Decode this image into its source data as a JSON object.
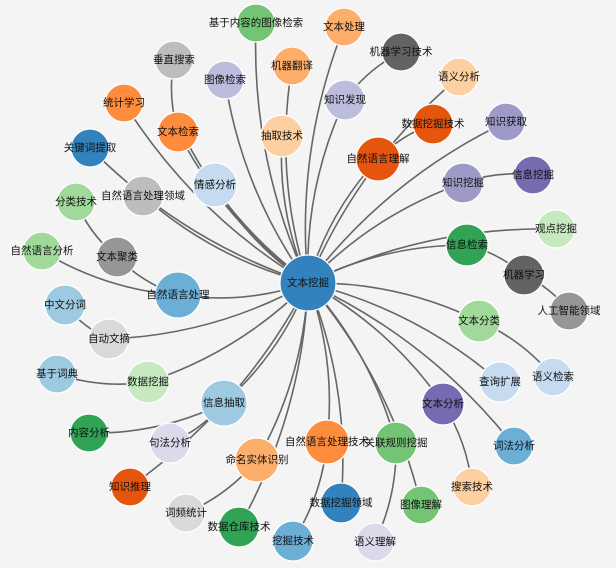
{
  "center": {
    "label": "文本挖掘",
    "color": "#3182bd"
  },
  "nodes": [
    {
      "label": "基于内容的图像检索",
      "color": "#74c476",
      "parent": "文本挖掘"
    },
    {
      "label": "文本处理",
      "color": "#fdae6b",
      "parent": "文本挖掘"
    },
    {
      "label": "机器翻译",
      "color": "#fdae6b",
      "parent": "文本挖掘"
    },
    {
      "label": "机器学习技术",
      "color": "#636363",
      "parent": "知识发现"
    },
    {
      "label": "垂直搜索",
      "color": "#bdbdbd",
      "parent": "文本检索"
    },
    {
      "label": "图像检索",
      "color": "#bcbddc",
      "parent": "文本挖掘"
    },
    {
      "label": "语义分析",
      "color": "#fdd0a2",
      "parent": "文本挖掘"
    },
    {
      "label": "统计学习",
      "color": "#fd8d3c",
      "parent": "文本挖掘"
    },
    {
      "label": "文本检索",
      "color": "#fd8d3c",
      "parent": "文本挖掘"
    },
    {
      "label": "抽取技术",
      "color": "#fdd0a2",
      "parent": "文本挖掘"
    },
    {
      "label": "知识发现",
      "color": "#bcbddc",
      "parent": "文本挖掘"
    },
    {
      "label": "数据挖掘技术",
      "color": "#e6550d",
      "parent": "自然语言理解"
    },
    {
      "label": "知识获取",
      "color": "#9e9ac8",
      "parent": "文本挖掘"
    },
    {
      "label": "自然语言理解",
      "color": "#e6550d",
      "parent": "文本挖掘"
    },
    {
      "label": "关键词提取",
      "color": "#3182bd",
      "parent": "文本挖掘"
    },
    {
      "label": "情感分析",
      "color": "#c6dbef",
      "parent": "文本挖掘"
    },
    {
      "label": "自然语言处理领域",
      "color": "#bdbdbd",
      "parent": "文本挖掘"
    },
    {
      "label": "知识挖掘",
      "color": "#9e9ac8",
      "parent": "文本挖掘"
    },
    {
      "label": "信息挖掘",
      "color": "#756bb1",
      "parent": "知识挖掘"
    },
    {
      "label": "分类技术",
      "color": "#a1d99b",
      "parent": "文本聚类"
    },
    {
      "label": "观点挖掘",
      "color": "#c7e9c0",
      "parent": "文本挖掘"
    },
    {
      "label": "信息检索",
      "color": "#31a354",
      "parent": "文本挖掘"
    },
    {
      "label": "自然语言分析",
      "color": "#a1d99b",
      "parent": "自然语言处理"
    },
    {
      "label": "文本聚类",
      "color": "#969696",
      "parent": "自然语言处理"
    },
    {
      "label": "机器学习",
      "color": "#636363",
      "parent": "信息检索"
    },
    {
      "label": "自然语言处理",
      "color": "#6baed6",
      "parent": "文本挖掘"
    },
    {
      "label": "人工智能领域",
      "color": "#969696",
      "parent": "机器学习"
    },
    {
      "label": "中文分词",
      "color": "#9ecae1",
      "parent": "自动文摘"
    },
    {
      "label": "自动文摘",
      "color": "#d9d9d9",
      "parent": "文本挖掘"
    },
    {
      "label": "文本分类",
      "color": "#a1d99b",
      "parent": "文本挖掘"
    },
    {
      "label": "基于词典",
      "color": "#9ecae1",
      "parent": "数据挖掘"
    },
    {
      "label": "数据挖掘",
      "color": "#c7e9c0",
      "parent": "文本挖掘"
    },
    {
      "label": "查询扩展",
      "color": "#c6dbef",
      "parent": "文本挖掘"
    },
    {
      "label": "语义检索",
      "color": "#c6dbef",
      "parent": "文本分类"
    },
    {
      "label": "信息抽取",
      "color": "#9ecae1",
      "parent": "文本挖掘"
    },
    {
      "label": "文本分析",
      "color": "#756bb1",
      "parent": "文本挖掘"
    },
    {
      "label": "内容分析",
      "color": "#31a354",
      "parent": "信息抽取"
    },
    {
      "label": "句法分析",
      "color": "#dadaeb",
      "parent": "信息抽取"
    },
    {
      "label": "词法分析",
      "color": "#6baed6",
      "parent": "文本挖掘"
    },
    {
      "label": "自然语言处理技术",
      "color": "#fd8d3c",
      "parent": "文本挖掘"
    },
    {
      "label": "关联规则挖掘",
      "color": "#74c476",
      "parent": "文本挖掘"
    },
    {
      "label": "命名实体识别",
      "color": "#fdae6b",
      "parent": "文本挖掘"
    },
    {
      "label": "知识推理",
      "color": "#e6550d",
      "parent": "文本挖掘"
    },
    {
      "label": "搜索技术",
      "color": "#fdd0a2",
      "parent": "文本分析"
    },
    {
      "label": "数据挖掘领域",
      "color": "#3182bd",
      "parent": "文本挖掘"
    },
    {
      "label": "图像理解",
      "color": "#74c476",
      "parent": "文本挖掘"
    },
    {
      "label": "词频统计",
      "color": "#d9d9d9",
      "parent": "命名实体识别"
    },
    {
      "label": "数据仓库技术",
      "color": "#31a354",
      "parent": "文本挖掘"
    },
    {
      "label": "挖掘技术",
      "color": "#6baed6",
      "parent": "自然语言处理技术"
    },
    {
      "label": "语义理解",
      "color": "#dadaeb",
      "parent": "关联规则挖掘"
    }
  ]
}
